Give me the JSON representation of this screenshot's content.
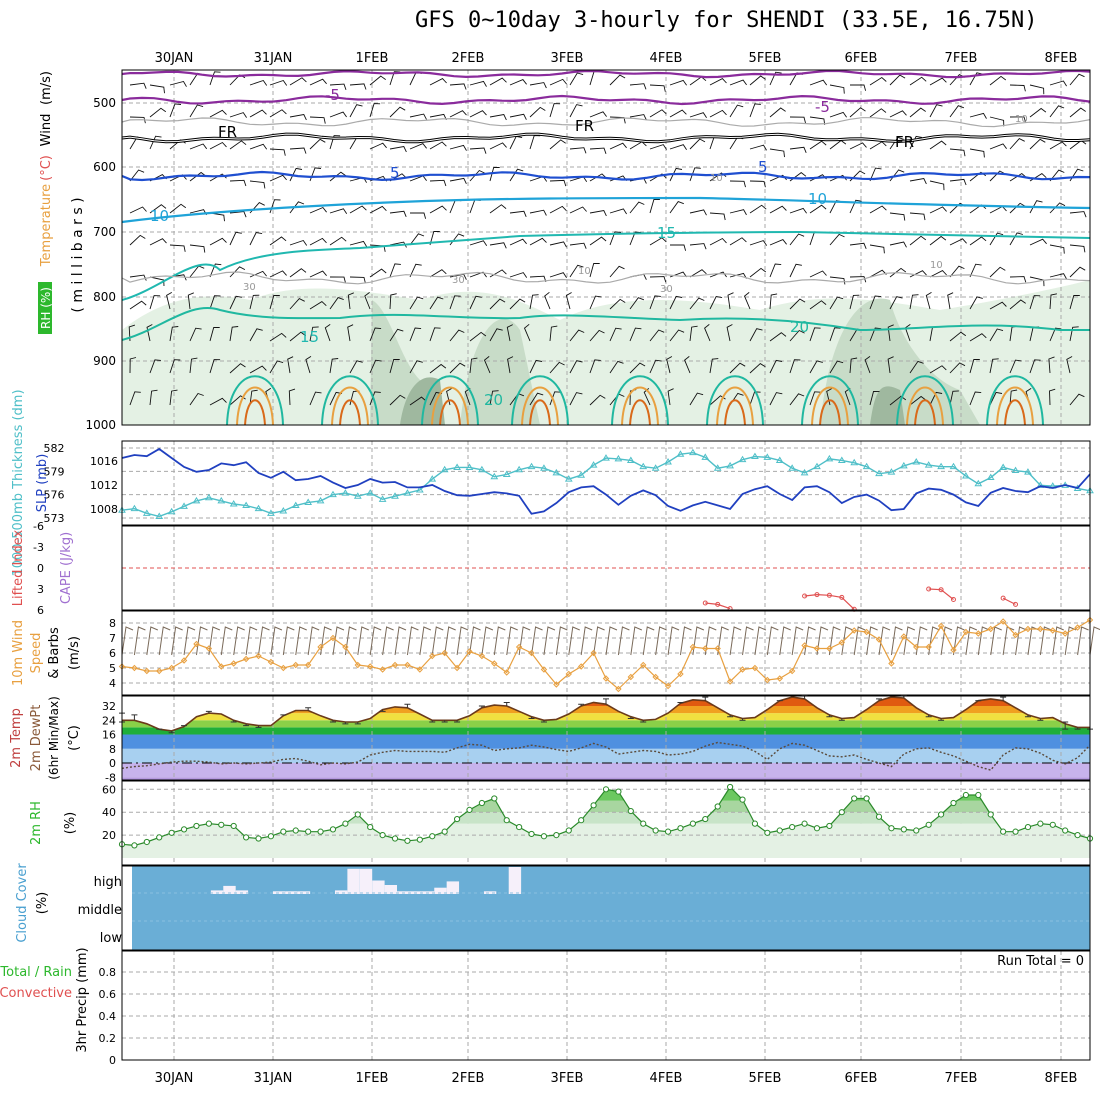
{
  "title": "GFS 0~10day 3-hourly for SHENDI (33.5E, 16.75N)",
  "dates": [
    "30JAN",
    "31JAN",
    "1FEB",
    "2FEB",
    "3FEB",
    "4FEB",
    "5FEB",
    "6FEB",
    "7FEB",
    "8FEB"
  ],
  "colors": {
    "cloud_fill": "#6aaed6",
    "orange": "#e8a040",
    "teal": "#4fbfc8",
    "blue": "#2040c0",
    "green": "#2db82d",
    "purple": "#a070d0",
    "red": "#e05050"
  },
  "upper_panel": {
    "ylabel_rh": "RH (%)",
    "ylabel_temp": "Temperature",
    "ylabel_temp_unit": "(°C)",
    "ylabel_wind": "Wind",
    "ylabel_wind_unit": "(m/s)",
    "ylabel_mb": "( m i l l i b a r s )",
    "ticks": [
      "500",
      "600",
      "700",
      "800",
      "900",
      "1000"
    ],
    "contour_labels": [
      "-5",
      "-5",
      "FR",
      "FR",
      "FR",
      "5",
      "5",
      "10",
      "10",
      "15",
      "15",
      "20",
      "20",
      "10",
      "10",
      "30",
      "30",
      "10",
      "10",
      "30"
    ]
  },
  "chart_data": [
    {
      "type": "line",
      "title": "",
      "ylabel_left": "1000-500mb Thickness (dm)",
      "ylabel_right": "SLP (mb)",
      "ylabel_left_ticks": [
        "573",
        "576",
        "579",
        "582"
      ],
      "ylabel_right_ticks": [
        "1008",
        "1012",
        "1016"
      ],
      "slp": [
        1016.5,
        1017.0,
        1016.8,
        1018.0,
        1016.5,
        1015.0,
        1014.2,
        1014.5,
        1015.6,
        1015.3,
        1015.8,
        1014.0,
        1013.2,
        1014.2,
        1012.8,
        1013.0,
        1013.5,
        1012.4,
        1011.5,
        1012.0,
        1013.0,
        1012.4,
        1012.5,
        1011.6,
        1011.6,
        1012.0,
        1011.0,
        1010.3,
        1010.2,
        1010.5,
        1010.8,
        1010.6,
        1010.2,
        1007.2,
        1007.6,
        1009.0,
        1010.8,
        1011.6,
        1011.8,
        1010.4,
        1008.7,
        1010.2,
        1011.1,
        1010.3,
        1008.5,
        1007.7,
        1008.6,
        1009.2,
        1008.6,
        1008.0,
        1010.5,
        1011.3,
        1011.8,
        1010.5,
        1009.5,
        1011.6,
        1011.8,
        1010.8,
        1009.0,
        1010.0,
        1010.4,
        1009.4,
        1007.8,
        1008.0,
        1010.6,
        1011.4,
        1011.2,
        1010.4,
        1009.1,
        1008.5,
        1010.7,
        1011.5,
        1011.0,
        1010.8,
        1011.8,
        1011.5,
        1012.0,
        1011.5,
        1013.8
      ],
      "thickness": [
        574.0,
        574.2,
        573.6,
        573.2,
        573.8,
        574.5,
        575.2,
        575.6,
        575.2,
        574.8,
        574.6,
        574.2,
        573.6,
        573.9,
        574.6,
        575.0,
        575.2,
        576.0,
        576.2,
        575.8,
        576.2,
        575.4,
        575.8,
        576.2,
        576.6,
        578.0,
        579.2,
        579.5,
        579.5,
        579.2,
        578.3,
        578.6,
        579.2,
        579.6,
        579.4,
        578.8,
        578.0,
        578.5,
        579.8,
        580.7,
        580.6,
        580.4,
        579.6,
        579.4,
        580.2,
        581.2,
        581.4,
        580.8,
        579.4,
        579.7,
        580.5,
        580.9,
        580.8,
        580.4,
        579.4,
        578.8,
        579.6,
        580.6,
        580.4,
        580.1,
        579.6,
        578.7,
        578.9,
        579.7,
        580.2,
        579.8,
        579.6,
        579.6,
        578.4,
        577.4,
        578.2,
        579.5,
        579.1,
        578.9,
        577.2,
        577.1,
        577.2,
        576.8,
        576.5
      ]
    },
    {
      "type": "line",
      "ylabel_li": "Lifted Index",
      "ylabel_cape": "CAPE (J/kg)",
      "yticks": [
        "-6",
        "-3",
        "0",
        "3",
        "6"
      ],
      "lifted_index": [
        null,
        null,
        null,
        null,
        null,
        null,
        null,
        null,
        null,
        null,
        null,
        null,
        null,
        null,
        null,
        null,
        null,
        null,
        null,
        null,
        null,
        null,
        null,
        null,
        null,
        null,
        null,
        null,
        null,
        null,
        null,
        null,
        null,
        null,
        null,
        null,
        null,
        null,
        null,
        null,
        null,
        null,
        null,
        null,
        null,
        null,
        null,
        5.0,
        5.2,
        5.8,
        null,
        null,
        null,
        null,
        null,
        4.0,
        3.8,
        3.9,
        4.2,
        5.9,
        null,
        null,
        null,
        null,
        null,
        3.0,
        3.1,
        4.5,
        null,
        null,
        null,
        4.3,
        5.2,
        null,
        null,
        null,
        null,
        null,
        null
      ]
    },
    {
      "type": "line",
      "ylabel_title": "10m Wind",
      "ylabel_speed": "Speed",
      "ylabel_barbs": "& Barbs",
      "ylabel_unit": "(m/s)",
      "yticks": [
        "4",
        "5",
        "6",
        "7",
        "8"
      ],
      "speed": [
        5.1,
        5.0,
        4.8,
        4.8,
        5.0,
        5.5,
        6.6,
        6.3,
        5.1,
        5.3,
        5.6,
        5.8,
        5.4,
        5.0,
        5.2,
        5.2,
        6.4,
        7.0,
        6.4,
        5.2,
        5.1,
        4.9,
        5.2,
        5.2,
        4.9,
        5.8,
        6.0,
        5.0,
        6.1,
        5.8,
        5.3,
        4.7,
        6.4,
        6.0,
        4.9,
        3.9,
        4.6,
        5.1,
        6.0,
        4.3,
        3.6,
        4.4,
        5.2,
        4.4,
        3.8,
        4.6,
        6.4,
        6.3,
        6.3,
        4.1,
        4.9,
        5.0,
        4.2,
        4.3,
        4.8,
        6.5,
        6.3,
        6.3,
        6.7,
        7.5,
        7.4,
        6.9,
        5.3,
        7.1,
        6.4,
        6.4,
        7.8,
        6.2,
        7.4,
        7.3,
        7.6,
        8.1,
        7.2,
        7.6,
        7.6,
        7.5,
        7.3,
        7.7,
        8.2
      ]
    },
    {
      "type": "line",
      "ylabel_title": "2m Temp",
      "ylabel_dewpt": "2m DewPt",
      "ylabel_minmax": "(6hr Min/Max)",
      "ylabel_unit": "(°C)",
      "yticks": [
        "-8",
        "0",
        "8",
        "16",
        "24",
        "32"
      ],
      "temp": [
        24.0,
        24.0,
        22.0,
        19.0,
        18.0,
        20.5,
        26.0,
        28.0,
        27.5,
        24.0,
        22.0,
        21.0,
        21.0,
        26.5,
        29.5,
        29.5,
        26.5,
        24.0,
        23.0,
        23.0,
        25.0,
        30.0,
        31.5,
        31.0,
        27.5,
        24.0,
        24.0,
        24.0,
        26.5,
        31.0,
        32.5,
        32.0,
        29.0,
        26.0,
        24.0,
        24.5,
        27.5,
        32.0,
        34.0,
        33.0,
        29.0,
        26.0,
        24.0,
        24.5,
        28.0,
        33.5,
        35.5,
        35.0,
        31.0,
        27.0,
        25.0,
        25.5,
        30.0,
        35.0,
        37.0,
        36.0,
        31.0,
        27.0,
        25.0,
        25.5,
        30.0,
        35.0,
        37.0,
        36.5,
        31.0,
        27.0,
        25.0,
        25.5,
        30.0,
        35.0,
        36.0,
        35.0,
        31.0,
        27.0,
        25.0,
        25.5,
        22.0,
        20.0,
        20.0
      ],
      "dewpt": [
        -3.0,
        -2.0,
        -1.5,
        -0.5,
        0.5,
        1.0,
        1.0,
        0.5,
        -0.5,
        0.0,
        -0.5,
        0.0,
        0.5,
        2.0,
        2.5,
        1.0,
        -1.0,
        0.0,
        -0.5,
        0.5,
        4.5,
        6.0,
        7.0,
        6.5,
        6.5,
        6.5,
        6.0,
        8.5,
        10.5,
        10.0,
        7.0,
        8.0,
        8.5,
        10.0,
        9.0,
        7.5,
        6.5,
        8.5,
        11.0,
        9.0,
        5.0,
        6.0,
        7.0,
        6.5,
        4.5,
        5.0,
        6.5,
        9.5,
        11.5,
        10.5,
        9.5,
        6.5,
        2.0,
        8.0,
        11.0,
        10.0,
        7.0,
        4.0,
        3.5,
        4.5,
        2.0,
        0.0,
        -2.0,
        5.0,
        8.0,
        8.5,
        6.0,
        4.0,
        1.0,
        -2.0,
        -4.0,
        4.5,
        8.5,
        8.0,
        5.5,
        1.5,
        -0.5,
        3.0,
        10.0
      ],
      "max6": [
        28,
        27,
        null,
        null,
        null,
        21,
        null,
        29,
        null,
        null,
        null,
        null,
        null,
        27,
        null,
        31,
        null,
        null,
        null,
        null,
        null,
        29,
        null,
        33,
        null,
        null,
        null,
        null,
        null,
        32,
        null,
        34,
        null,
        null,
        null,
        null,
        null,
        33,
        null,
        36,
        null,
        null,
        null,
        null,
        null,
        34,
        null,
        37,
        null,
        null,
        null,
        null,
        null,
        35,
        null,
        38,
        null,
        null,
        null,
        null,
        null,
        36,
        null,
        38,
        null,
        null,
        null,
        null,
        null,
        35,
        null,
        37,
        null,
        null,
        null,
        null,
        23,
        null,
        null
      ],
      "min6": [
        23,
        null,
        null,
        19,
        17,
        null,
        null,
        null,
        null,
        23,
        21,
        20,
        null,
        null,
        null,
        null,
        null,
        23,
        22,
        22,
        null,
        null,
        null,
        null,
        null,
        23,
        23,
        23,
        null,
        null,
        null,
        null,
        null,
        25,
        23,
        null,
        null,
        null,
        null,
        null,
        null,
        25,
        23,
        null,
        null,
        null,
        null,
        null,
        null,
        26,
        24,
        null,
        null,
        null,
        null,
        null,
        null,
        26,
        24,
        null,
        null,
        null,
        null,
        null,
        null,
        26,
        24,
        null,
        null,
        null,
        null,
        null,
        null,
        26,
        24,
        null,
        19,
        19,
        19
      ]
    },
    {
      "type": "area",
      "ylabel_title": "2m RH",
      "ylabel_unit": "(%)",
      "yticks": [
        "20",
        "40",
        "60"
      ],
      "rh": [
        12,
        11,
        14,
        18,
        22,
        25,
        28,
        30,
        29,
        28,
        18,
        17,
        19,
        23,
        24,
        23,
        23,
        25,
        30,
        38,
        27,
        20,
        17,
        15,
        16,
        19,
        23,
        34,
        42,
        48,
        52,
        33,
        27,
        21,
        19,
        20,
        24,
        33,
        46,
        60,
        58,
        41,
        30,
        24,
        23,
        26,
        30,
        34,
        45,
        62,
        51,
        30,
        22,
        24,
        27,
        30,
        26,
        28,
        40,
        52,
        52,
        36,
        26,
        25,
        24,
        29,
        38,
        48,
        55,
        55,
        38,
        23,
        23,
        27,
        30,
        29,
        24,
        20,
        17
      ]
    },
    {
      "type": "bar",
      "ylabel_title": "Cloud Cover",
      "ylabel_unit": "(%)",
      "levels": [
        "high",
        "middle",
        "low"
      ],
      "high_cloud": [
        0,
        0,
        0,
        0,
        0,
        0,
        0,
        4,
        9,
        4,
        0,
        0,
        3,
        3,
        3,
        0,
        0,
        4,
        28,
        28,
        15,
        10,
        3,
        3,
        3,
        7,
        14,
        0,
        0,
        3,
        0,
        30,
        0,
        0,
        0,
        0,
        0,
        0,
        0,
        0,
        0,
        0,
        0,
        0,
        0,
        0,
        0,
        0,
        0,
        0,
        0,
        0,
        0,
        0,
        0,
        0,
        0,
        0,
        0,
        0,
        0,
        0,
        0,
        0,
        0,
        0,
        0,
        0,
        0,
        0,
        0,
        0,
        0,
        0,
        0,
        0,
        0,
        0,
        0
      ]
    },
    {
      "type": "bar",
      "ylabel_title": "Total / Rain",
      "ylabel_conv": "Convective",
      "ylabel_precip": "3hr Precip (mm)",
      "yticks": [
        "0",
        "0.2",
        "0.4",
        "0.6",
        "0.8"
      ],
      "run_total": "Run Total = 0",
      "precip": []
    }
  ]
}
